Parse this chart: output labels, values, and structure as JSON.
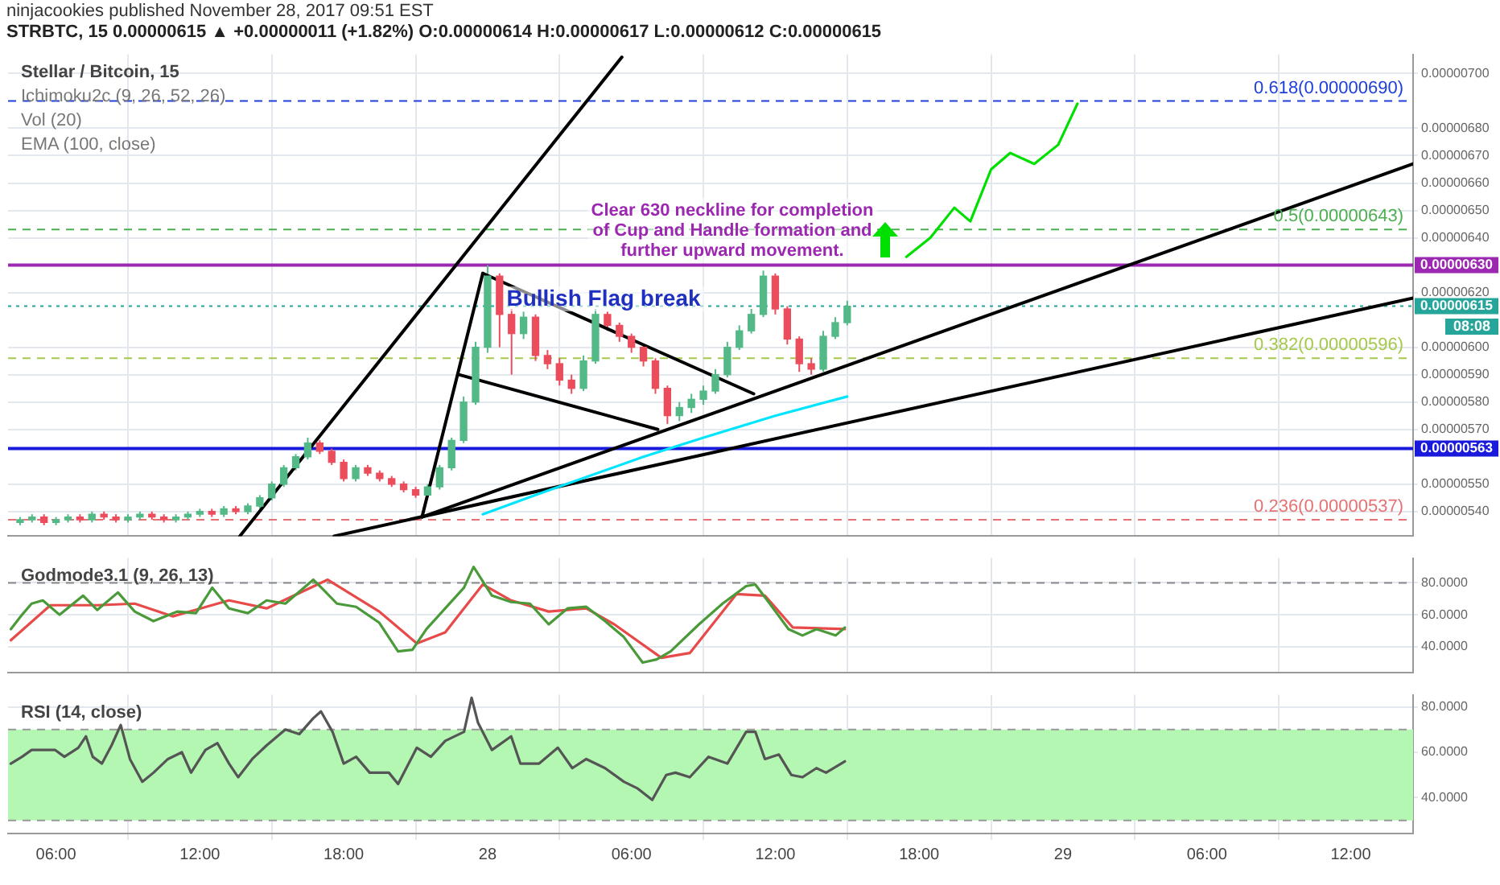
{
  "chart_data": [
    {
      "type": "candlestick",
      "title": "Stellar / Bitcoin, 15",
      "subtitle": "ninjacookies published November 28, 2017 09:51 EST",
      "annotations": [
        "STRBTC, 15  0.00000615 ▲ +0.00000011 (+1.82%) O:0.00000614 H:0.00000617 L:0.00000612 C:0.00000615",
        "Ichimoku2c (9, 26, 52, 26)",
        "Vol (20)",
        "EMA (100, close)",
        "Bullish Flag break",
        "Clear 630 neckline for completion of Cup and Handle formation and further upward movement.",
        "08:08"
      ],
      "x": [
        "2017-11-27T04:30",
        "2017-11-27T05:00",
        "2017-11-27T05:30",
        "2017-11-27T06:00",
        "2017-11-27T06:30",
        "2017-11-27T07:00",
        "2017-11-27T07:30",
        "2017-11-27T08:00",
        "2017-11-27T08:30",
        "2017-11-27T09:00",
        "2017-11-27T09:30",
        "2017-11-27T10:00",
        "2017-11-27T10:30",
        "2017-11-27T11:00",
        "2017-11-27T11:30",
        "2017-11-27T12:00",
        "2017-11-27T12:30",
        "2017-11-27T13:00",
        "2017-11-27T13:30",
        "2017-11-27T14:00",
        "2017-11-27T14:30",
        "2017-11-27T15:00",
        "2017-11-27T15:30",
        "2017-11-27T16:00",
        "2017-11-27T16:30",
        "2017-11-27T17:00",
        "2017-11-27T17:30",
        "2017-11-27T18:00",
        "2017-11-27T18:30",
        "2017-11-27T19:00",
        "2017-11-27T19:30",
        "2017-11-27T20:00",
        "2017-11-27T20:30",
        "2017-11-27T21:00",
        "2017-11-27T21:30",
        "2017-11-27T22:00",
        "2017-11-27T22:30",
        "2017-11-27T23:00",
        "2017-11-27T23:30",
        "2017-11-28T00:00",
        "2017-11-28T00:30",
        "2017-11-28T01:00",
        "2017-11-28T01:30",
        "2017-11-28T02:00",
        "2017-11-28T02:30",
        "2017-11-28T03:00",
        "2017-11-28T03:30",
        "2017-11-28T04:00",
        "2017-11-28T04:30",
        "2017-11-28T05:00",
        "2017-11-28T05:30",
        "2017-11-28T06:00",
        "2017-11-28T06:30",
        "2017-11-28T07:00",
        "2017-11-28T07:30",
        "2017-11-28T08:00",
        "2017-11-28T08:30",
        "2017-11-28T09:00",
        "2017-11-28T09:30",
        "2017-11-28T10:00",
        "2017-11-28T10:30",
        "2017-11-28T11:00",
        "2017-11-28T11:30",
        "2017-11-28T12:00",
        "2017-11-28T12:30",
        "2017-11-28T13:00",
        "2017-11-28T13:30",
        "2017-11-28T14:00",
        "2017-11-28T14:30",
        "2017-11-28T15:00"
      ],
      "ohlc": [
        [
          5.36e-06,
          5.38e-06,
          5.35e-06,
          5.37e-06
        ],
        [
          5.37e-06,
          5.39e-06,
          5.36e-06,
          5.38e-06
        ],
        [
          5.38e-06,
          5.39e-06,
          5.35e-06,
          5.36e-06
        ],
        [
          5.36e-06,
          5.38e-06,
          5.35e-06,
          5.37e-06
        ],
        [
          5.37e-06,
          5.39e-06,
          5.36e-06,
          5.38e-06
        ],
        [
          5.38e-06,
          5.39e-06,
          5.36e-06,
          5.37e-06
        ],
        [
          5.37e-06,
          5.4e-06,
          5.36e-06,
          5.39e-06
        ],
        [
          5.39e-06,
          5.4e-06,
          5.37e-06,
          5.38e-06
        ],
        [
          5.38e-06,
          5.39e-06,
          5.36e-06,
          5.37e-06
        ],
        [
          5.37e-06,
          5.39e-06,
          5.36e-06,
          5.38e-06
        ],
        [
          5.38e-06,
          5.4e-06,
          5.37e-06,
          5.39e-06
        ],
        [
          5.39e-06,
          5.4e-06,
          5.37e-06,
          5.38e-06
        ],
        [
          5.38e-06,
          5.39e-06,
          5.36e-06,
          5.37e-06
        ],
        [
          5.37e-06,
          5.39e-06,
          5.36e-06,
          5.38e-06
        ],
        [
          5.38e-06,
          5.4e-06,
          5.37e-06,
          5.39e-06
        ],
        [
          5.39e-06,
          5.41e-06,
          5.38e-06,
          5.4e-06
        ],
        [
          5.4e-06,
          5.41e-06,
          5.38e-06,
          5.39e-06
        ],
        [
          5.39e-06,
          5.42e-06,
          5.38e-06,
          5.41e-06
        ],
        [
          5.41e-06,
          5.42e-06,
          5.39e-06,
          5.4e-06
        ],
        [
          5.4e-06,
          5.43e-06,
          5.39e-06,
          5.42e-06
        ],
        [
          5.42e-06,
          5.46e-06,
          5.41e-06,
          5.45e-06
        ],
        [
          5.45e-06,
          5.51e-06,
          5.44e-06,
          5.5e-06
        ],
        [
          5.5e-06,
          5.57e-06,
          5.49e-06,
          5.56e-06
        ],
        [
          5.56e-06,
          5.61e-06,
          5.55e-06,
          5.6e-06
        ],
        [
          5.6e-06,
          5.67e-06,
          5.59e-06,
          5.65e-06
        ],
        [
          5.65e-06,
          5.66e-06,
          5.61e-06,
          5.62e-06
        ],
        [
          5.62e-06,
          5.63e-06,
          5.57e-06,
          5.58e-06
        ],
        [
          5.58e-06,
          5.59e-06,
          5.51e-06,
          5.52e-06
        ],
        [
          5.52e-06,
          5.57e-06,
          5.51e-06,
          5.56e-06
        ],
        [
          5.56e-06,
          5.57e-06,
          5.53e-06,
          5.54e-06
        ],
        [
          5.54e-06,
          5.55e-06,
          5.51e-06,
          5.52e-06
        ],
        [
          5.52e-06,
          5.53e-06,
          5.49e-06,
          5.5e-06
        ],
        [
          5.5e-06,
          5.51e-06,
          5.47e-06,
          5.48e-06
        ],
        [
          5.48e-06,
          5.49e-06,
          5.45e-06,
          5.46e-06
        ],
        [
          5.46e-06,
          5.5e-06,
          5.45e-06,
          5.49e-06
        ],
        [
          5.49e-06,
          5.57e-06,
          5.48e-06,
          5.56e-06
        ],
        [
          5.56e-06,
          5.67e-06,
          5.55e-06,
          5.66e-06
        ],
        [
          5.66e-06,
          5.82e-06,
          5.65e-06,
          5.8e-06
        ],
        [
          5.8e-06,
          6.02e-06,
          5.79e-06,
          6e-06
        ],
        [
          6e-06,
          6.3e-06,
          5.98e-06,
          6.26e-06
        ],
        [
          6.26e-06,
          6.27e-06,
          6e-06,
          6.12e-06
        ],
        [
          6.12e-06,
          6.14e-06,
          5.9e-06,
          6.05e-06
        ],
        [
          6.05e-06,
          6.13e-06,
          6.03e-06,
          6.11e-06
        ],
        [
          6.11e-06,
          6.12e-06,
          5.95e-06,
          5.97e-06
        ],
        [
          5.97e-06,
          5.99e-06,
          5.92e-06,
          5.94e-06
        ],
        [
          5.94e-06,
          5.96e-06,
          5.86e-06,
          5.88e-06
        ],
        [
          5.88e-06,
          5.9e-06,
          5.83e-06,
          5.85e-06
        ],
        [
          5.85e-06,
          5.97e-06,
          5.84e-06,
          5.95e-06
        ],
        [
          5.95e-06,
          6.14e-06,
          5.94e-06,
          6.12e-06
        ],
        [
          6.12e-06,
          6.13e-06,
          6.06e-06,
          6.08e-06
        ],
        [
          6.08e-06,
          6.09e-06,
          6.02e-06,
          6.04e-06
        ],
        [
          6.04e-06,
          6.05e-06,
          5.98e-06,
          6e-06
        ],
        [
          6e-06,
          6.01e-06,
          5.93e-06,
          5.95e-06
        ],
        [
          5.95e-06,
          5.96e-06,
          5.83e-06,
          5.85e-06
        ],
        [
          5.85e-06,
          5.86e-06,
          5.72e-06,
          5.75e-06
        ],
        [
          5.75e-06,
          5.8e-06,
          5.73e-06,
          5.78e-06
        ],
        [
          5.78e-06,
          5.83e-06,
          5.76e-06,
          5.81e-06
        ],
        [
          5.81e-06,
          5.86e-06,
          5.79e-06,
          5.84e-06
        ],
        [
          5.84e-06,
          5.92e-06,
          5.83e-06,
          5.9e-06
        ],
        [
          5.9e-06,
          6.02e-06,
          5.89e-06,
          6e-06
        ],
        [
          6e-06,
          6.08e-06,
          5.99e-06,
          6.06e-06
        ],
        [
          6.06e-06,
          6.14e-06,
          6.05e-06,
          6.12e-06
        ],
        [
          6.12e-06,
          6.28e-06,
          6.11e-06,
          6.26e-06
        ],
        [
          6.26e-06,
          6.27e-06,
          6.12e-06,
          6.14e-06
        ],
        [
          6.14e-06,
          6.15e-06,
          6.01e-06,
          6.03e-06
        ],
        [
          6.03e-06,
          6.04e-06,
          5.91e-06,
          5.94e-06
        ],
        [
          5.94e-06,
          5.96e-06,
          5.9e-06,
          5.92e-06
        ],
        [
          5.92e-06,
          6.06e-06,
          5.91e-06,
          6.04e-06
        ],
        [
          6.04e-06,
          6.11e-06,
          6.03e-06,
          6.09e-06
        ],
        [
          6.09e-06,
          6.17e-06,
          6.08e-06,
          6.15e-06
        ]
      ],
      "series": [
        {
          "type": "line",
          "color": "#00e5ff",
          "x": [
            "2017-11-27T23:48",
            "2017-11-28T02:00",
            "2017-11-28T06:30",
            "2017-11-28T09:00",
            "2017-11-28T12:00",
            "2017-11-28T15:00"
          ],
          "values": [
            5.39e-06,
            5.46e-06,
            5.6e-06,
            5.67e-06,
            5.75e-06,
            5.82e-06
          ]
        },
        {
          "type": "line",
          "color": "#000000",
          "x": [
            "2017-11-27T13:40",
            "2017-11-28T05:36"
          ],
          "values": [
            5.31e-06,
            7.06e-06
          ]
        },
        {
          "type": "line",
          "color": "#000000",
          "x": [
            "2017-11-27T21:16",
            "2017-11-29T14:36"
          ],
          "values": [
            5.38e-06,
            6.67e-06
          ]
        },
        {
          "type": "line",
          "color": "#000000",
          "x": [
            "2017-11-27T17:36",
            "2017-11-29T14:36"
          ],
          "values": [
            5.31e-06,
            6.18e-06
          ]
        },
        {
          "type": "line",
          "color": "#000000",
          "x": [
            "2017-11-27T21:16",
            "2017-11-27T23:48"
          ],
          "values": [
            5.38e-06,
            6.27e-06
          ]
        },
        {
          "type": "line",
          "color": "#000000",
          "x": [
            "2017-11-27T23:48",
            "2017-11-28T11:06"
          ],
          "values": [
            6.27e-06,
            5.83e-06
          ]
        },
        {
          "type": "line",
          "color": "#000000",
          "x": [
            "2017-11-27T22:48",
            "2017-11-28T07:06"
          ],
          "values": [
            5.9e-06,
            5.7e-06
          ]
        },
        {
          "type": "line",
          "color": "#00e000",
          "x": [
            "2017-11-28T17:28",
            "2017-11-28T18:28",
            "2017-11-28T19:28",
            "2017-11-28T20:08",
            "2017-11-28T21:00",
            "2017-11-28T21:48",
            "2017-11-28T22:48",
            "2017-11-28T23:48",
            "2017-11-29T00:36"
          ],
          "values": [
            6.33e-06,
            6.4e-06,
            6.51e-06,
            6.46e-06,
            6.65e-06,
            6.71e-06,
            6.67e-06,
            6.74e-06,
            6.89e-06
          ]
        }
      ],
      "ref_lines": [
        {
          "axis": "y",
          "value": 6.9e-06,
          "label": "0.618(0.00000690)",
          "color": "#1e40d8",
          "line_style": "dashed"
        },
        {
          "axis": "y",
          "value": 6.43e-06,
          "label": "0.5(0.00000643)",
          "color": "#4caf50",
          "line_style": "dashed"
        },
        {
          "axis": "y",
          "value": 6.3e-06,
          "label": "0.00000630",
          "color": "#9c27b0",
          "line_style": "solid"
        },
        {
          "axis": "y",
          "value": 6.15e-06,
          "label": "0.00000615",
          "color": "#26a69a",
          "line_style": "dotted"
        },
        {
          "axis": "y",
          "value": 5.96e-06,
          "label": "0.382(0.00000596)",
          "color": "#a5c94a",
          "line_style": "dashed"
        },
        {
          "axis": "y",
          "value": 5.63e-06,
          "label": "0.00000563",
          "color": "#1a1adc",
          "line_style": "solid"
        },
        {
          "axis": "y",
          "value": 5.37e-06,
          "label": "0.236(0.00000537)",
          "color": "#e57373",
          "line_style": "dashed"
        }
      ],
      "xlim": [
        "2017-11-27T04:00",
        "2017-11-29T14:36"
      ],
      "xticks": [
        {
          "value": "2017-11-27T06:00",
          "label": null
        },
        {
          "value": "2017-11-27T12:00",
          "label": null
        },
        {
          "value": "2017-11-27T18:00",
          "label": null
        },
        {
          "value": "2017-11-28",
          "label": null
        },
        {
          "value": "2017-11-28T06:00",
          "label": null
        },
        {
          "value": "2017-11-28T12:00",
          "label": null
        },
        {
          "value": "2017-11-28T18:00",
          "label": null
        },
        {
          "value": "2017-11-29",
          "label": null
        },
        {
          "value": "2017-11-29T06:00",
          "label": null
        },
        {
          "value": "2017-11-29T12:00",
          "label": null
        }
      ],
      "ylim": [
        5.31e-06,
        7.07e-06
      ],
      "yticks": [
        {
          "value": 5.4e-06,
          "label": "0.00000540"
        },
        {
          "value": 5.5e-06,
          "label": "0.00000550"
        },
        {
          "value": 5.7e-06,
          "label": "0.00000570"
        },
        {
          "value": 5.8e-06,
          "label": "0.00000580"
        },
        {
          "value": 5.9e-06,
          "label": "0.00000590"
        },
        {
          "value": 6e-06,
          "label": "0.00000600"
        },
        {
          "value": 6.2e-06,
          "label": "0.00000620"
        },
        {
          "value": 6.4e-06,
          "label": "0.00000640"
        },
        {
          "value": 6.5e-06,
          "label": "0.00000650"
        },
        {
          "value": 6.6e-06,
          "label": "0.00000660"
        },
        {
          "value": 6.7e-06,
          "label": "0.00000670"
        },
        {
          "value": 6.8e-06,
          "label": "0.00000680"
        },
        {
          "value": 7e-06,
          "label": "0.00000700"
        }
      ],
      "grid": true,
      "tick_labels": "y",
      "marker": "none",
      "line_style": "solid"
    },
    {
      "type": "line",
      "title": "Godmode3.1 (9, 26, 13)",
      "series": [
        {
          "color": "#4a9a3a",
          "x": [
            "2017-11-27T04:07",
            "2017-11-27T04:35",
            "2017-11-27T04:59",
            "2017-11-27T05:27",
            "2017-11-27T06:09",
            "2017-11-27T07:08",
            "2017-11-27T07:43",
            "2017-11-27T08:35",
            "2017-11-27T09:17",
            "2017-11-27T10:04",
            "2017-11-27T11:03",
            "2017-11-27T11:50",
            "2017-11-27T12:31",
            "2017-11-27T13:13",
            "2017-11-27T14:00",
            "2017-11-27T14:47",
            "2017-11-27T15:34",
            "2017-11-27T16:44",
            "2017-11-27T17:08",
            "2017-11-27T17:43",
            "2017-11-27T18:31",
            "2017-11-27T19:29",
            "2017-11-27T20:16",
            "2017-11-27T20:52",
            "2017-11-27T21:27",
            "2017-11-27T22:14",
            "2017-11-27T23:01",
            "2017-11-27T23:25",
            "2017-11-28T00:11",
            "2017-11-28T00:59",
            "2017-11-28T01:46",
            "2017-11-28T02:33",
            "2017-11-28T03:20",
            "2017-11-28T04:07",
            "2017-11-28T04:54",
            "2017-11-28T05:41",
            "2017-11-28T06:28",
            "2017-11-28T07:03",
            "2017-11-28T07:38",
            "2017-11-28T08:49",
            "2017-11-28T09:48",
            "2017-11-28T10:47",
            "2017-11-28T11:10",
            "2017-11-28T11:46",
            "2017-11-28T12:33",
            "2017-11-28T13:08",
            "2017-11-28T13:43",
            "2017-11-28T14:31",
            "2017-11-28T14:54"
          ],
          "values": [
            51,
            60,
            67,
            69,
            60,
            72,
            63,
            74,
            62,
            56,
            62,
            61,
            77,
            64,
            61,
            69,
            67,
            82,
            76,
            67,
            65,
            55,
            37,
            38,
            51,
            64,
            77,
            90,
            72,
            68,
            67,
            54,
            64,
            65,
            56,
            46,
            30,
            32,
            37,
            54,
            67,
            78,
            79,
            67,
            51,
            47,
            51,
            47,
            52
          ]
        },
        {
          "color": "#e84a4a",
          "x": [
            "2017-11-27T04:07",
            "2017-11-27T05:46",
            "2017-11-27T07:43",
            "2017-11-27T09:17",
            "2017-11-27T10:52",
            "2017-11-27T13:13",
            "2017-11-27T14:47",
            "2017-11-27T17:20",
            "2017-11-27T19:29",
            "2017-11-27T21:03",
            "2017-11-27T22:14",
            "2017-11-27T23:48",
            "2017-11-28T00:59",
            "2017-11-28T02:33",
            "2017-11-28T04:07",
            "2017-11-28T05:17",
            "2017-11-28T07:15",
            "2017-11-28T08:26",
            "2017-11-28T10:23",
            "2017-11-28T11:34",
            "2017-11-28T12:44",
            "2017-11-28T14:54"
          ],
          "values": [
            44,
            66,
            66,
            67,
            59,
            69,
            64,
            82,
            62,
            42,
            49,
            79,
            69,
            62,
            64,
            54,
            33,
            36,
            73,
            72,
            52,
            51
          ]
        }
      ],
      "ref_lines": [
        {
          "axis": "y",
          "value": 80,
          "color": "#888888",
          "line_style": "dashed"
        }
      ],
      "xlim": [
        "2017-11-27T04:00",
        "2017-11-29T14:36"
      ],
      "xticks": [
        {
          "value": "2017-11-27T06:00",
          "label": null
        },
        {
          "value": "2017-11-27T12:00",
          "label": null
        },
        {
          "value": "2017-11-27T18:00",
          "label": null
        },
        {
          "value": "2017-11-28",
          "label": null
        },
        {
          "value": "2017-11-28T06:00",
          "label": null
        },
        {
          "value": "2017-11-28T12:00",
          "label": null
        },
        {
          "value": "2017-11-28T18:00",
          "label": null
        },
        {
          "value": "2017-11-29",
          "label": null
        },
        {
          "value": "2017-11-29T06:00",
          "label": null
        },
        {
          "value": "2017-11-29T12:00",
          "label": null
        }
      ],
      "ylim": [
        23.5,
        95.6
      ],
      "yticks": [
        {
          "value": 40,
          "label": "40.0000"
        },
        {
          "value": 60,
          "label": "60.0000"
        },
        {
          "value": 80,
          "label": "80.0000"
        }
      ],
      "grid": true,
      "tick_labels": "y",
      "marker": "none",
      "line_style": "solid"
    },
    {
      "type": "line",
      "title": "RSI (14, close)",
      "series": [
        {
          "color": "#555555",
          "x": [
            "2017-11-27T04:07",
            "2017-11-27T04:35",
            "2017-11-27T04:59",
            "2017-11-27T05:58",
            "2017-11-27T06:21",
            "2017-11-27T06:56",
            "2017-11-27T07:15",
            "2017-11-27T07:32",
            "2017-11-27T07:55",
            "2017-11-27T08:19",
            "2017-11-27T08:42",
            "2017-11-27T09:05",
            "2017-11-27T09:36",
            "2017-11-27T10:04",
            "2017-11-27T10:40",
            "2017-11-27T11:15",
            "2017-11-27T11:38",
            "2017-11-27T12:14",
            "2017-11-27T12:44",
            "2017-11-27T13:13",
            "2017-11-27T13:36",
            "2017-11-27T14:11",
            "2017-11-27T14:47",
            "2017-11-27T15:34",
            "2017-11-27T16:09",
            "2017-11-27T16:44",
            "2017-11-27T17:03",
            "2017-11-27T17:32",
            "2017-11-27T18:00",
            "2017-11-27T18:31",
            "2017-11-27T19:05",
            "2017-11-27T19:53",
            "2017-11-27T20:16",
            "2017-11-27T21:03",
            "2017-11-27T21:38",
            "2017-11-27T22:14",
            "2017-11-27T23:01",
            "2017-11-27T23:20",
            "2017-11-27T23:36",
            "2017-11-28T00:11",
            "2017-11-28T00:59",
            "2017-11-28T01:22",
            "2017-11-28T02:09",
            "2017-11-28T02:56",
            "2017-11-28T03:32",
            "2017-11-28T04:07",
            "2017-11-28T04:54",
            "2017-11-28T05:41",
            "2017-11-28T06:16",
            "2017-11-28T06:52",
            "2017-11-28T07:27",
            "2017-11-28T07:50",
            "2017-11-28T08:26",
            "2017-11-28T09:13",
            "2017-11-28T10:00",
            "2017-11-28T10:47",
            "2017-11-28T11:10",
            "2017-11-28T11:34",
            "2017-11-28T12:09",
            "2017-11-28T12:40",
            "2017-11-28T13:08",
            "2017-11-28T13:43",
            "2017-11-28T14:07",
            "2017-11-28T14:54"
          ],
          "values": [
            55,
            58,
            61,
            61,
            58,
            62,
            67,
            58,
            55,
            63,
            72,
            57,
            47,
            51,
            57,
            60,
            51,
            61,
            64,
            55,
            49,
            57,
            63,
            70,
            68,
            75,
            78,
            69,
            55,
            58,
            51,
            51,
            46,
            62,
            58,
            65,
            69,
            84,
            73,
            61,
            67,
            55,
            55,
            62,
            53,
            57,
            53,
            47,
            44,
            39,
            50,
            51,
            49,
            58,
            55,
            69,
            69,
            57,
            59,
            50,
            49,
            53,
            51,
            56
          ]
        }
      ],
      "bands": [
        {
          "axis": "y",
          "from": 30,
          "to": 70,
          "color": "#b3f7b3"
        }
      ],
      "ref_lines": [
        {
          "axis": "y",
          "value": 70,
          "color": "#999999",
          "line_style": "dashed"
        },
        {
          "axis": "y",
          "value": 30,
          "color": "#999999",
          "line_style": "dashed"
        }
      ],
      "xlim": [
        "2017-11-27T04:00",
        "2017-11-29T14:36"
      ],
      "xticks": [
        {
          "value": "2017-11-27T06:00",
          "label": "06:00"
        },
        {
          "value": "2017-11-27T12:00",
          "label": "12:00"
        },
        {
          "value": "2017-11-27T18:00",
          "label": "18:00"
        },
        {
          "value": "2017-11-28",
          "label": "28"
        },
        {
          "value": "2017-11-28T06:00",
          "label": "06:00"
        },
        {
          "value": "2017-11-28T12:00",
          "label": "12:00"
        },
        {
          "value": "2017-11-28T18:00",
          "label": "18:00"
        },
        {
          "value": "2017-11-29",
          "label": "29"
        },
        {
          "value": "2017-11-29T06:00",
          "label": "06:00"
        },
        {
          "value": "2017-11-29T12:00",
          "label": "12:00"
        }
      ],
      "ylim": [
        24.2,
        85.3
      ],
      "yticks": [
        {
          "value": 40,
          "label": "40.0000"
        },
        {
          "value": 60,
          "label": "60.0000"
        },
        {
          "value": 80,
          "label": "80.0000"
        }
      ],
      "grid": true,
      "marker": "none",
      "line_style": "solid"
    }
  ]
}
